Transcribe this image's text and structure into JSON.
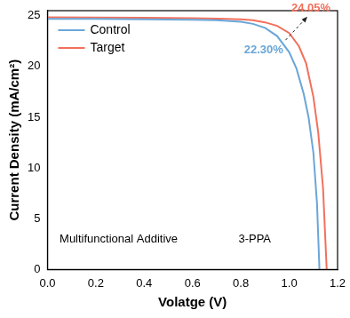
{
  "chart_data": {
    "type": "line",
    "x_label": "Volatge (V)",
    "y_label": "Current Density (mA/cm²)",
    "xlim": [
      0,
      1.2
    ],
    "xticks": [
      {
        "value": 0,
        "label": "0.0"
      },
      0.2,
      0.4,
      0.6,
      0.8,
      {
        "value": 1.0,
        "label": "1.0"
      },
      1.2
    ],
    "ylim": [
      0,
      25.5
    ],
    "yticks": [
      0,
      5,
      10,
      15,
      20,
      25
    ],
    "grid": false,
    "legend": "upper left",
    "series": [
      {
        "name": "Control",
        "color": "#6aa6d8",
        "x": [
          0,
          0.2,
          0.4,
          0.6,
          0.7,
          0.8,
          0.85,
          0.9,
          0.95,
          1.0,
          1.03,
          1.06,
          1.08,
          1.1,
          1.115,
          1.125
        ],
        "values": [
          24.7,
          24.68,
          24.65,
          24.6,
          24.55,
          24.4,
          24.2,
          23.8,
          23.0,
          21.4,
          19.8,
          17.3,
          15.0,
          11.5,
          6.5,
          0
        ]
      },
      {
        "name": "Target",
        "color": "#f2705c",
        "x": [
          0,
          0.2,
          0.4,
          0.6,
          0.7,
          0.8,
          0.85,
          0.9,
          0.95,
          1.0,
          1.04,
          1.07,
          1.1,
          1.12,
          1.14,
          1.155
        ],
        "values": [
          24.85,
          24.83,
          24.8,
          24.76,
          24.72,
          24.65,
          24.55,
          24.35,
          24.0,
          23.3,
          22.0,
          20.3,
          17.0,
          13.5,
          8.0,
          0
        ]
      }
    ],
    "annotations": [
      {
        "text": "22.30%",
        "color": "#6aa6d8"
      },
      {
        "text": "24.05%",
        "color": "#f2705c"
      },
      {
        "text": "Multifunctional Additive"
      },
      {
        "text": "3-PPA"
      }
    ]
  }
}
